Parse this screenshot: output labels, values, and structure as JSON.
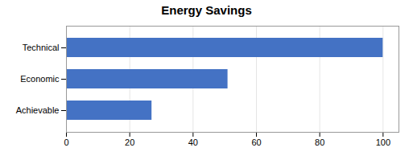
{
  "chart_data": {
    "type": "bar",
    "orientation": "horizontal",
    "title": "Energy Savings",
    "categories": [
      "Achievable",
      "Economic",
      "Technical"
    ],
    "values": [
      27,
      51,
      100
    ],
    "color": "#4472C4",
    "xlim": [
      0,
      105
    ],
    "xticks": [
      0,
      20,
      40,
      60,
      80,
      100
    ],
    "grid": true
  }
}
